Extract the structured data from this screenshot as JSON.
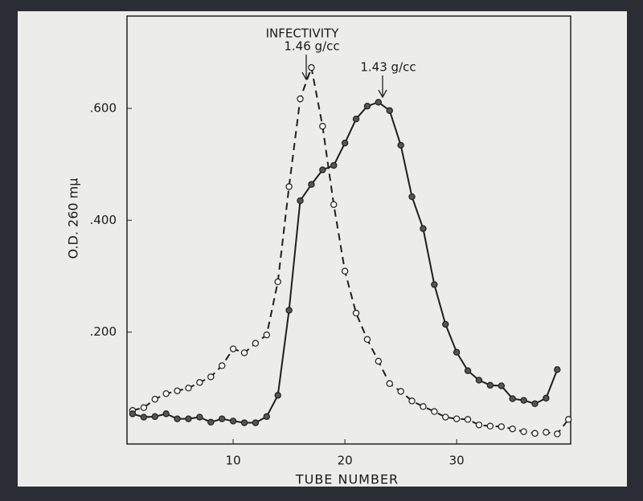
{
  "chart_data": {
    "type": "line",
    "annotations": [
      "INFECTIVITY",
      "1.46 g/cc",
      "1.43 g/cc"
    ],
    "x_label": "TUBE NUMBER",
    "y_label": "O.D. 260 mμ",
    "x": [
      1,
      2,
      3,
      4,
      5,
      6,
      7,
      8,
      9,
      10,
      11,
      12,
      13,
      14,
      15,
      16,
      17,
      18,
      19,
      20,
      21,
      22,
      23,
      24,
      25,
      26,
      27,
      28,
      29,
      30,
      31,
      32,
      33,
      34,
      35,
      36,
      37,
      38,
      39,
      40
    ],
    "series": [
      {
        "name": "INFECTIVITY",
        "color": "#1e1e1e",
        "style": "dashed",
        "marker": "open",
        "values": [
          0.06,
          0.065,
          0.08,
          0.09,
          0.095,
          0.1,
          0.11,
          0.12,
          0.14,
          0.17,
          0.163,
          0.18,
          0.195,
          0.29,
          0.46,
          0.617,
          0.673,
          0.568,
          0.428,
          0.309,
          0.234,
          0.187,
          0.148,
          0.108,
          0.094,
          0.077,
          0.067,
          0.058,
          0.048,
          0.045,
          0.044,
          0.034,
          0.032,
          0.031,
          0.027,
          0.022,
          0.019,
          0.021,
          0.018,
          0.044
        ]
      },
      {
        "name": "O.D. 260 mμ",
        "color": "#1e1e1e",
        "style": "solid",
        "marker": "filled",
        "values": [
          0.054,
          0.048,
          0.049,
          0.054,
          0.045,
          0.045,
          0.048,
          0.039,
          0.045,
          0.041,
          0.038,
          0.038,
          0.049,
          0.087,
          0.239,
          0.435,
          0.464,
          0.49,
          0.498,
          0.538,
          0.581,
          0.604,
          0.611,
          0.596,
          0.534,
          0.442,
          0.385,
          0.285,
          0.214,
          0.164,
          0.131,
          0.114,
          0.105,
          0.104,
          0.081,
          0.078,
          0.072,
          0.082,
          0.133,
          null
        ]
      }
    ],
    "xlim": [
      0.5,
      40.2
    ],
    "ylim": [
      0,
      0.765
    ],
    "xticks": [
      10,
      20,
      30
    ],
    "yticks": [
      {
        "value": 0.2,
        "label": ".200"
      },
      {
        "value": 0.4,
        "label": ".400"
      },
      {
        "value": 0.6,
        "label": ".600"
      }
    ]
  }
}
